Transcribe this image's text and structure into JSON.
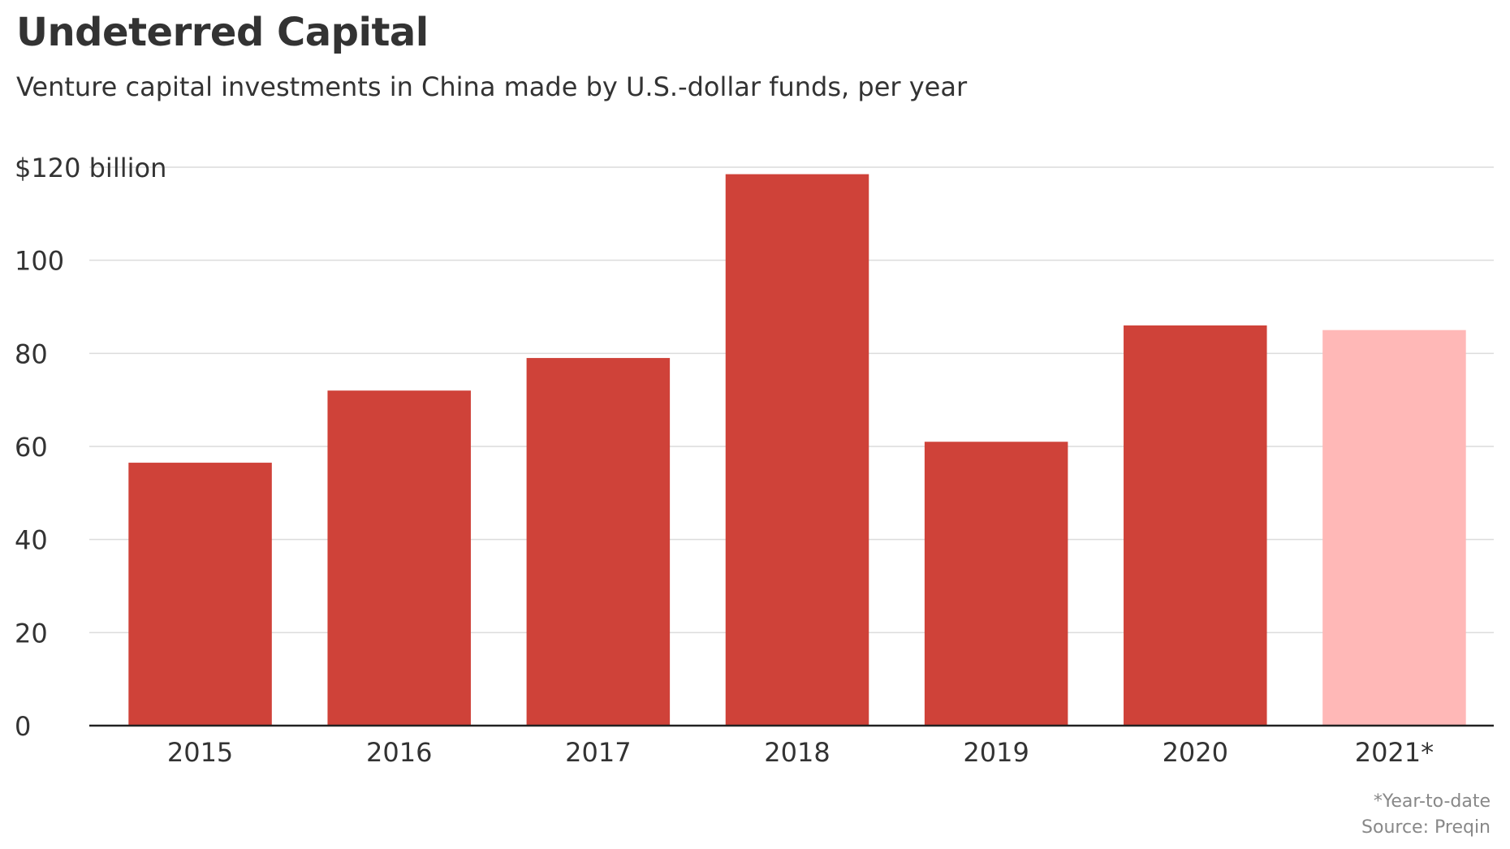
{
  "title": "Undeterred Capital",
  "subtitle": "Venture capital investments in China made by U.S.-dollar funds, per year",
  "footnotes": {
    "note": "*Year-to-date",
    "source": "Source: Preqin"
  },
  "colors": {
    "bar": "#cf4239",
    "bar_partial": "#ffb8b7",
    "grid": "#dcdcdc",
    "axis": "#222222"
  },
  "chart_data": {
    "type": "bar",
    "categories": [
      "2015",
      "2016",
      "2017",
      "2018",
      "2019",
      "2020",
      "2021*"
    ],
    "values": [
      56.5,
      72,
      79,
      118.5,
      61,
      86,
      85
    ],
    "partial": [
      false,
      false,
      false,
      false,
      false,
      false,
      true
    ],
    "ylim": [
      0,
      120
    ],
    "yticks": [
      0,
      20,
      40,
      60,
      80,
      100,
      120
    ],
    "ytick_labels": [
      "0",
      "20",
      "40",
      "60",
      "80",
      "100",
      "$120 billion"
    ],
    "grid": true
  }
}
